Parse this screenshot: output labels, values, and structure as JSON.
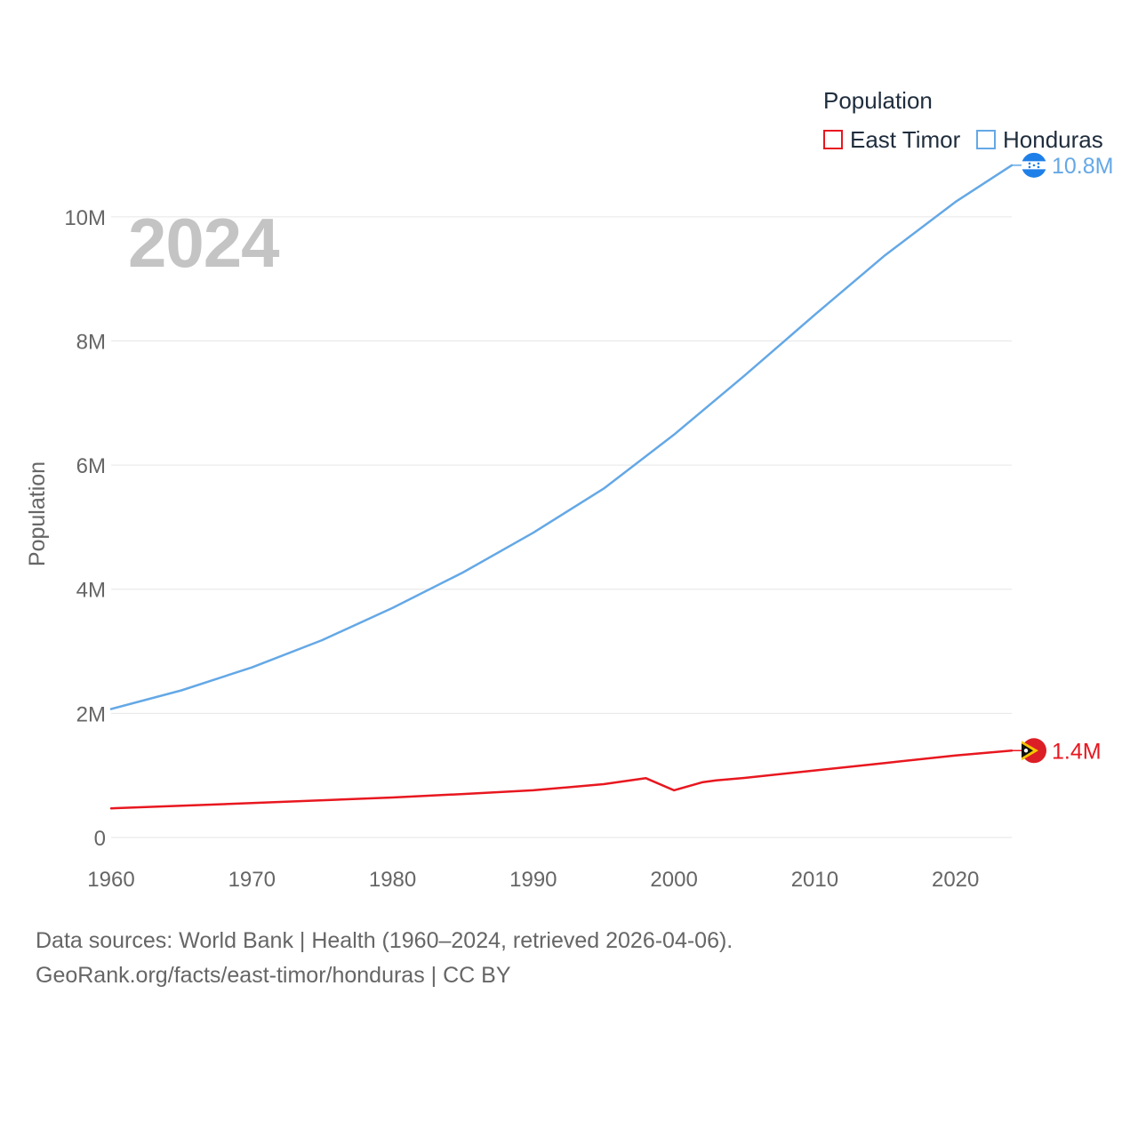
{
  "chart_data": {
    "type": "line",
    "title": "Population",
    "ylabel": "Population",
    "xlabel": "",
    "current_year": "2024",
    "xlim": [
      1960,
      2024
    ],
    "ylim": [
      0,
      11000000
    ],
    "x_ticks": [
      1960,
      1970,
      1980,
      1990,
      2000,
      2010,
      2020
    ],
    "x_tick_labels": [
      "1960",
      "1970",
      "1980",
      "1990",
      "2000",
      "2010",
      "2020"
    ],
    "y_ticks": [
      0,
      2000000,
      4000000,
      6000000,
      8000000,
      10000000
    ],
    "y_tick_labels": [
      "0",
      "2M",
      "4M",
      "6M",
      "8M",
      "10M"
    ],
    "grid": true,
    "legend_position": "top-right",
    "series": [
      {
        "name": "East Timor",
        "color": "#e8171f",
        "end_label": "1.4M",
        "flag_icon": "east-timor-flag-icon",
        "points": [
          [
            1960,
            470000
          ],
          [
            1970,
            555000
          ],
          [
            1980,
            645000
          ],
          [
            1985,
            700000
          ],
          [
            1990,
            760000
          ],
          [
            1995,
            860000
          ],
          [
            1998,
            955000
          ],
          [
            2000,
            760000
          ],
          [
            2002,
            890000
          ],
          [
            2003,
            920000
          ],
          [
            2005,
            960000
          ],
          [
            2010,
            1080000
          ],
          [
            2015,
            1200000
          ],
          [
            2020,
            1320000
          ],
          [
            2024,
            1400000
          ]
        ]
      },
      {
        "name": "Honduras",
        "color": "#64a8e6",
        "end_label": "10.8M",
        "flag_icon": "honduras-flag-icon",
        "points": [
          [
            1960,
            2070000
          ],
          [
            1965,
            2370000
          ],
          [
            1970,
            2740000
          ],
          [
            1975,
            3180000
          ],
          [
            1980,
            3700000
          ],
          [
            1985,
            4270000
          ],
          [
            1990,
            4910000
          ],
          [
            1995,
            5620000
          ],
          [
            2000,
            6490000
          ],
          [
            2005,
            7440000
          ],
          [
            2010,
            8420000
          ],
          [
            2015,
            9380000
          ],
          [
            2020,
            10240000
          ],
          [
            2024,
            10830000
          ]
        ]
      }
    ]
  },
  "footer": {
    "line1": "Data sources: World Bank | Health (1960–2024, retrieved 2026-04-06).",
    "line2": "GeoRank.org/facts/east-timor/honduras | CC BY"
  }
}
